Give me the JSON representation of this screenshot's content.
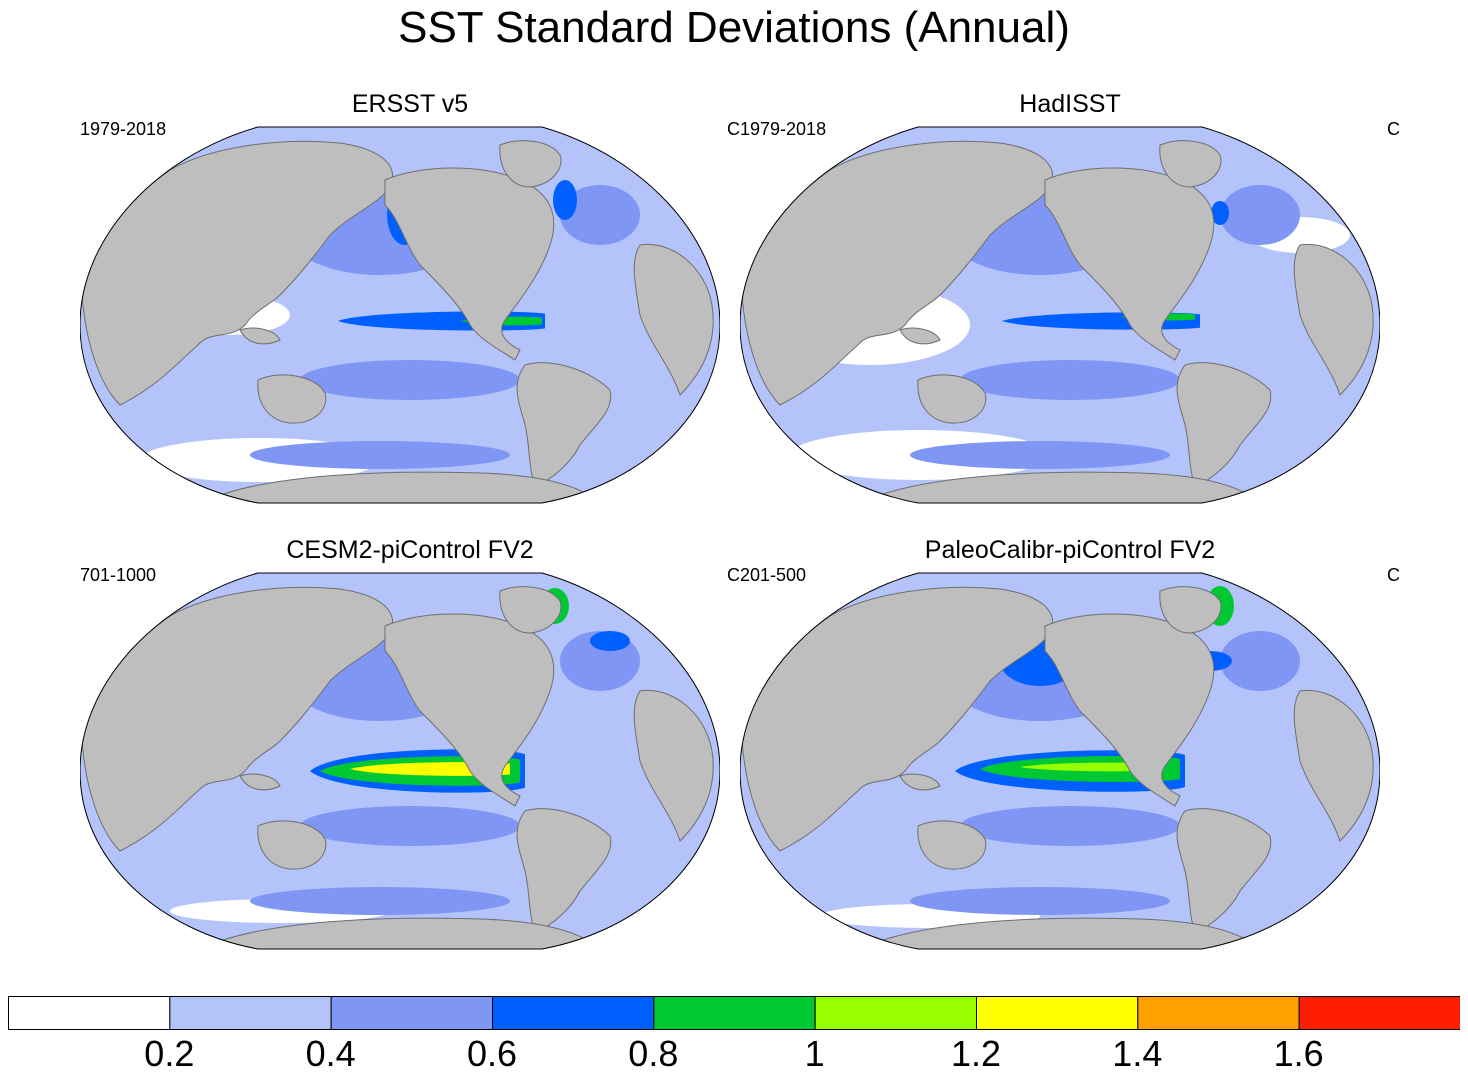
{
  "title": "SST Standard Deviations (Annual)",
  "panels": [
    {
      "title": "ERSST v5",
      "period": "1979-2018",
      "units": "C"
    },
    {
      "title": "HadISST",
      "period": "1979-2018",
      "units": "C"
    },
    {
      "title": "CESM2-piControl FV2",
      "period": "701-1000",
      "units": "C"
    },
    {
      "title": "PaleoCalibr-piControl FV2",
      "period": "201-500",
      "units": "C"
    }
  ],
  "colors": {
    "land": "#bebebe",
    "coast": "#6e6e6e",
    "levels": [
      "#ffffff",
      "#b4c4fa",
      "#7f96f5",
      "#0060ff",
      "#00c832",
      "#96ff00",
      "#ffff00",
      "#ffa000",
      "#ff1e00"
    ]
  },
  "colorbar": {
    "labels": [
      "0.2",
      "0.4",
      "0.6",
      "0.8",
      "1",
      "1.2",
      "1.4",
      "1.6"
    ]
  }
}
